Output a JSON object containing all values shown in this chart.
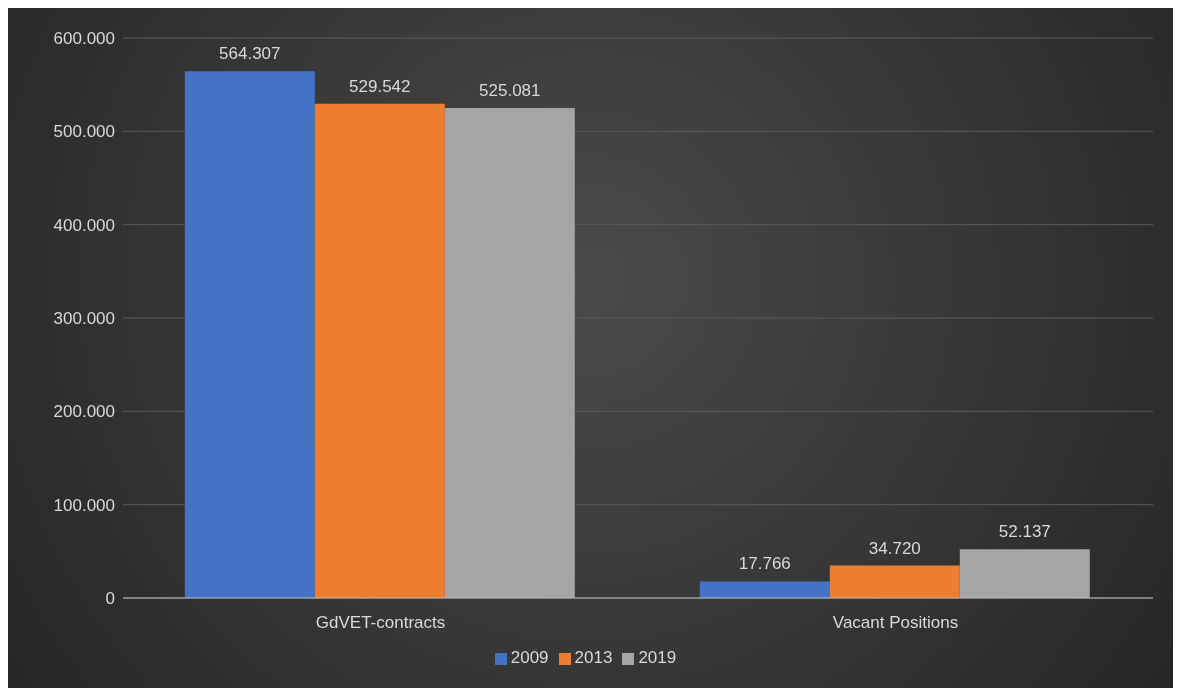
{
  "chart_data": {
    "type": "bar",
    "categories": [
      "GdVET-contracts",
      "Vacant Positions"
    ],
    "series": [
      {
        "name": "2009",
        "color": "#4472c4",
        "values": [
          564307,
          17766
        ],
        "value_labels": [
          "564.307",
          "17.766"
        ]
      },
      {
        "name": "2013",
        "color": "#ed7d31",
        "values": [
          529542,
          34720
        ],
        "value_labels": [
          "529.542",
          "34.720"
        ]
      },
      {
        "name": "2019",
        "color": "#a5a5a5",
        "values": [
          525081,
          52137
        ],
        "value_labels": [
          "525.081",
          "52.137"
        ]
      }
    ],
    "ylim": [
      0,
      600000
    ],
    "yticks": [
      0,
      {
        "value": 100000,
        "label": "100.000"
      },
      {
        "value": 200000,
        "label": "200.000"
      },
      {
        "value": 300000,
        "label": "300.000"
      },
      {
        "value": 400000,
        "label": "400.000"
      },
      {
        "value": 500000,
        "label": "500.000"
      },
      {
        "value": 600000,
        "label": "600.000"
      }
    ],
    "grid": "y",
    "legend": "bottom"
  }
}
